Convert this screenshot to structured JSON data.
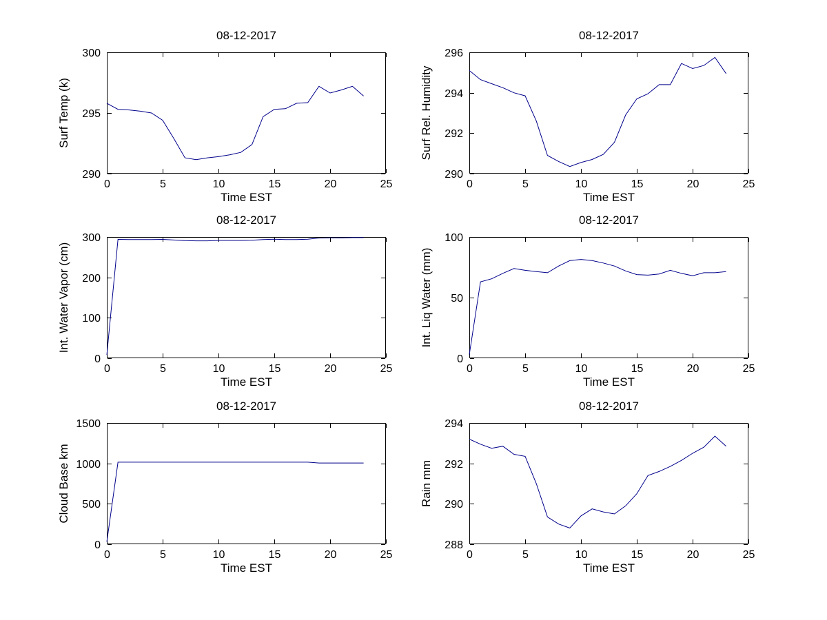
{
  "figure": {
    "background": "#ffffff",
    "line_color": "#00008B",
    "axis_color": "#000000",
    "text_color": "#000000"
  },
  "chart_data": [
    {
      "type": "line",
      "title": "08-12-2017",
      "xlabel": "Time EST",
      "ylabel": "Surf Temp (k)",
      "xlim": [
        0,
        25
      ],
      "ylim": [
        290,
        300
      ],
      "xticks": [
        0,
        5,
        10,
        15,
        20,
        25
      ],
      "yticks": [
        290,
        295,
        300
      ],
      "grid": false,
      "legend": "none",
      "x": [
        0,
        1,
        2,
        3,
        4,
        5,
        6,
        7,
        8,
        9,
        10,
        11,
        12,
        13,
        14,
        15,
        16,
        17,
        18,
        19,
        20,
        21,
        22,
        23
      ],
      "values": [
        295.8,
        295.3,
        295.25,
        295.15,
        295.0,
        294.4,
        292.9,
        291.3,
        291.15,
        291.3,
        291.4,
        291.55,
        291.75,
        292.4,
        294.7,
        295.3,
        295.35,
        295.8,
        295.85,
        297.2,
        296.65,
        296.9,
        297.2,
        296.4
      ]
    },
    {
      "type": "line",
      "title": "08-12-2017",
      "xlabel": "Time EST",
      "ylabel": "Surf Rel. Humidity",
      "xlim": [
        0,
        25
      ],
      "ylim": [
        290,
        296
      ],
      "xticks": [
        0,
        5,
        10,
        15,
        20,
        25
      ],
      "yticks": [
        290,
        292,
        294,
        296
      ],
      "grid": false,
      "legend": "none",
      "x": [
        0,
        1,
        2,
        3,
        4,
        5,
        6,
        7,
        8,
        9,
        10,
        11,
        12,
        13,
        14,
        15,
        16,
        17,
        18,
        19,
        20,
        21,
        22,
        23
      ],
      "values": [
        295.1,
        294.65,
        294.45,
        294.25,
        294.0,
        293.85,
        292.6,
        290.9,
        290.6,
        290.35,
        290.55,
        290.7,
        290.95,
        291.55,
        292.9,
        293.7,
        293.95,
        294.4,
        294.4,
        295.45,
        295.2,
        295.35,
        295.75,
        294.95
      ]
    },
    {
      "type": "line",
      "title": "08-12-2017",
      "xlabel": "Time EST",
      "ylabel": "Int. Water Vapor (cm)",
      "xlim": [
        0,
        25
      ],
      "ylim": [
        0,
        300
      ],
      "xticks": [
        0,
        5,
        10,
        15,
        20,
        25
      ],
      "yticks": [
        0,
        100,
        200,
        300
      ],
      "grid": false,
      "legend": "none",
      "x": [
        0,
        1,
        2,
        3,
        4,
        5,
        6,
        7,
        8,
        9,
        10,
        11,
        12,
        13,
        14,
        15,
        16,
        17,
        18,
        19,
        20,
        21,
        22,
        23
      ],
      "values": [
        8,
        294,
        293.5,
        293.5,
        293.5,
        294,
        292.5,
        291,
        290.5,
        290.5,
        291.5,
        291.5,
        291.5,
        292,
        293.5,
        294.5,
        293.5,
        293.5,
        294.5,
        297.5,
        298,
        298,
        298.5,
        298.5
      ]
    },
    {
      "type": "line",
      "title": "08-12-2017",
      "xlabel": "Time EST",
      "ylabel": "Int. Liq Water (mm)",
      "xlim": [
        0,
        25
      ],
      "ylim": [
        0,
        100
      ],
      "xticks": [
        0,
        5,
        10,
        15,
        20,
        25
      ],
      "yticks": [
        0,
        50,
        100
      ],
      "grid": false,
      "legend": "none",
      "x": [
        0,
        1,
        2,
        3,
        4,
        5,
        6,
        7,
        8,
        9,
        10,
        11,
        12,
        13,
        14,
        15,
        16,
        17,
        18,
        19,
        20,
        21,
        22,
        23
      ],
      "values": [
        3,
        63,
        65.5,
        70,
        74,
        72.5,
        71.5,
        70.5,
        76,
        80.5,
        81.5,
        80.5,
        78.5,
        76,
        72,
        69,
        68.5,
        69.5,
        72.5,
        70,
        68,
        70.5,
        70.5,
        71.5
      ]
    },
    {
      "type": "line",
      "title": "08-12-2017",
      "xlabel": "Time EST",
      "ylabel": "Cloud Base km",
      "xlim": [
        0,
        25
      ],
      "ylim": [
        0,
        1500
      ],
      "xticks": [
        0,
        5,
        10,
        15,
        20,
        25
      ],
      "yticks": [
        0,
        500,
        1000,
        1500
      ],
      "grid": false,
      "legend": "none",
      "x": [
        0,
        1,
        2,
        3,
        4,
        5,
        6,
        7,
        8,
        9,
        10,
        11,
        12,
        13,
        14,
        15,
        16,
        17,
        18,
        19,
        20,
        21,
        22,
        23
      ],
      "values": [
        30,
        1015,
        1015,
        1015,
        1015,
        1015,
        1015,
        1015,
        1015,
        1015,
        1015,
        1015,
        1015,
        1015,
        1015,
        1015,
        1015,
        1015,
        1015,
        1005,
        1005,
        1005,
        1005,
        1005
      ]
    },
    {
      "type": "line",
      "title": "08-12-2017",
      "xlabel": "Time EST",
      "ylabel": "Rain mm",
      "xlim": [
        0,
        25
      ],
      "ylim": [
        288,
        294
      ],
      "xticks": [
        0,
        5,
        10,
        15,
        20,
        25
      ],
      "yticks": [
        288,
        290,
        292,
        294
      ],
      "grid": false,
      "legend": "none",
      "x": [
        0,
        1,
        2,
        3,
        4,
        5,
        6,
        7,
        8,
        9,
        10,
        11,
        12,
        13,
        14,
        15,
        16,
        17,
        18,
        19,
        20,
        21,
        22,
        23
      ],
      "values": [
        293.2,
        292.95,
        292.75,
        292.85,
        292.45,
        292.35,
        291.0,
        289.35,
        289.0,
        288.8,
        289.4,
        289.75,
        289.6,
        289.5,
        289.9,
        290.5,
        291.4,
        291.6,
        291.85,
        292.15,
        292.5,
        292.8,
        293.35,
        292.85
      ]
    }
  ]
}
